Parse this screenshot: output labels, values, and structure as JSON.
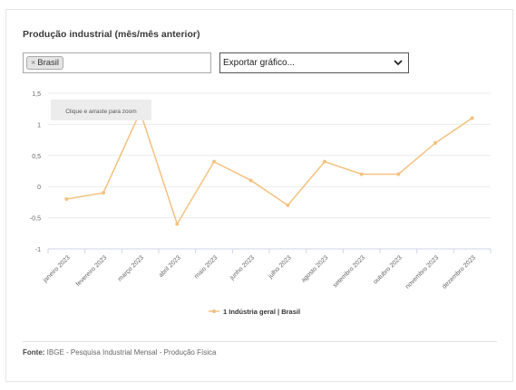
{
  "title": "Produção industrial (mês/mês anterior)",
  "filter": {
    "chips": [
      {
        "label": "Brasil",
        "remove_icon": "×"
      }
    ]
  },
  "export_select": {
    "value": "Exportar gráfico...",
    "icon": "chevron-down-icon"
  },
  "zoom_tooltip": "Clique e arraste para zoom",
  "chart_data": {
    "type": "line",
    "categories": [
      "janeiro 2023",
      "fevereiro 2023",
      "março 2023",
      "abril 2023",
      "maio 2023",
      "junho 2023",
      "julho 2023",
      "agosto 2023",
      "setembro 2023",
      "outubro 2023",
      "novembro 2023",
      "dezembro 2023"
    ],
    "series": [
      {
        "name": "1 Indústria geral | Brasil",
        "values": [
          -0.2,
          -0.1,
          1.2,
          -0.6,
          0.4,
          0.1,
          -0.3,
          0.4,
          0.2,
          0.2,
          0.7,
          1.1
        ],
        "color": "#f4c17f"
      }
    ],
    "yticks": [
      "1,5",
      "1",
      "0,5",
      "0",
      "-0,5",
      "-1"
    ],
    "ytick_values": [
      1.5,
      1,
      0.5,
      0,
      -0.5,
      -1
    ],
    "ylim": [
      -1,
      1.5
    ],
    "grid": true,
    "legend_position": "bottom"
  },
  "source": {
    "label": "Fonte:",
    "text": "IBGE - Pesquisa Industrial Mensal - Produção Física"
  }
}
